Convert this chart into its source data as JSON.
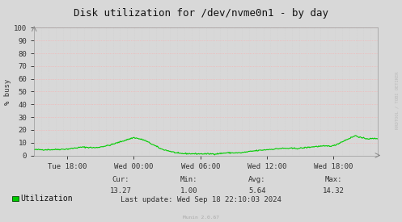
{
  "title": "Disk utilization for /dev/nvme0n1 - by day",
  "ylabel": "% busy",
  "background_color": "#d8d8d8",
  "plot_bg_color": "#d8d8d8",
  "grid_color_h": "#ffaaaa",
  "grid_color_v": "#cccccc",
  "line_color": "#00cc00",
  "ylim": [
    0,
    100
  ],
  "yticks": [
    0,
    10,
    20,
    30,
    40,
    50,
    60,
    70,
    80,
    90,
    100
  ],
  "xtick_labels": [
    "Tue 18:00",
    "Wed 00:00",
    "Wed 06:00",
    "Wed 12:00",
    "Wed 18:00"
  ],
  "legend_label": "Utilization",
  "cur_val": "13.27",
  "min_val": "1.00",
  "avg_val": "5.64",
  "max_val": "14.32",
  "last_update": "Last update: Wed Sep 18 22:10:03 2024",
  "munin_version": "Munin 2.0.67",
  "watermark": "RRDTOOL / TOBI OETIKER",
  "title_fontsize": 9,
  "axis_fontsize": 6.5,
  "legend_fontsize": 7,
  "stats_fontsize": 6.5
}
